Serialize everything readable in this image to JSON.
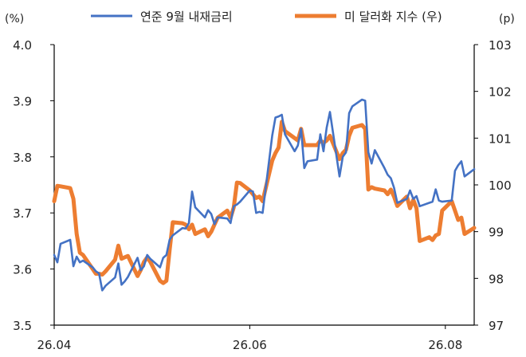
{
  "chart_data": {
    "type": "line",
    "left_axis": {
      "unit_label": "(%)",
      "ylim": [
        3.5,
        4.0
      ],
      "ticks": [
        "4.0",
        "3.9",
        "3.8",
        "3.7",
        "3.6",
        "3.5"
      ]
    },
    "right_axis": {
      "unit_label": "(p)",
      "ylim": [
        97,
        103
      ],
      "ticks": [
        "103",
        "102",
        "101",
        "100",
        "99",
        "98",
        "97"
      ]
    },
    "x_ticks": [
      "26.04",
      "26.06",
      "26.08"
    ],
    "grid": false,
    "legend_position": "top",
    "series": [
      {
        "name": "연준 9월 내재금리",
        "axis": "left",
        "color": "#4472C4",
        "points": [
          [
            "04-01",
            3.625
          ],
          [
            "04-02",
            3.612
          ],
          [
            "04-03",
            3.645
          ],
          [
            "04-06",
            3.652
          ],
          [
            "04-07",
            3.605
          ],
          [
            "04-08",
            3.622
          ],
          [
            "04-09",
            3.612
          ],
          [
            "04-10",
            3.615
          ],
          [
            "04-13",
            3.603
          ],
          [
            "04-14",
            3.596
          ],
          [
            "04-15",
            3.592
          ],
          [
            "04-16",
            3.562
          ],
          [
            "04-17",
            3.57
          ],
          [
            "04-20",
            3.585
          ],
          [
            "04-21",
            3.61
          ],
          [
            "04-22",
            3.572
          ],
          [
            "04-23",
            3.578
          ],
          [
            "04-24",
            3.586
          ],
          [
            "04-27",
            3.62
          ],
          [
            "04-28",
            3.598
          ],
          [
            "04-29",
            3.605
          ],
          [
            "04-30",
            3.625
          ],
          [
            "05-01",
            3.618
          ],
          [
            "05-04",
            3.603
          ],
          [
            "05-05",
            3.62
          ],
          [
            "05-06",
            3.625
          ],
          [
            "05-07",
            3.652
          ],
          [
            "05-08",
            3.66
          ],
          [
            "05-11",
            3.673
          ],
          [
            "05-12",
            3.672
          ],
          [
            "05-13",
            3.682
          ],
          [
            "05-14",
            3.738
          ],
          [
            "05-15",
            3.71
          ],
          [
            "05-18",
            3.692
          ],
          [
            "05-19",
            3.705
          ],
          [
            "05-20",
            3.698
          ],
          [
            "05-21",
            3.68
          ],
          [
            "05-22",
            3.692
          ],
          [
            "05-25",
            3.69
          ],
          [
            "05-26",
            3.682
          ],
          [
            "05-27",
            3.712
          ],
          [
            "05-28",
            3.715
          ],
          [
            "05-29",
            3.72
          ],
          [
            "06-01",
            3.74
          ],
          [
            "06-02",
            3.738
          ],
          [
            "06-03",
            3.7
          ],
          [
            "06-04",
            3.702
          ],
          [
            "06-05",
            3.7
          ],
          [
            "06-08",
            3.838
          ],
          [
            "06-09",
            3.87
          ],
          [
            "06-10",
            3.872
          ],
          [
            "06-11",
            3.875
          ],
          [
            "06-12",
            3.84
          ],
          [
            "06-15",
            3.81
          ],
          [
            "06-16",
            3.82
          ],
          [
            "06-17",
            3.85
          ],
          [
            "06-18",
            3.78
          ],
          [
            "06-19",
            3.792
          ],
          [
            "06-22",
            3.795
          ],
          [
            "06-23",
            3.84
          ],
          [
            "06-24",
            3.81
          ],
          [
            "06-25",
            3.852
          ],
          [
            "06-26",
            3.88
          ],
          [
            "06-29",
            3.765
          ],
          [
            "06-30",
            3.8
          ],
          [
            "07-01",
            3.808
          ],
          [
            "07-02",
            3.878
          ],
          [
            "07-03",
            3.89
          ],
          [
            "07-06",
            3.902
          ],
          [
            "07-07",
            3.9
          ],
          [
            "07-08",
            3.808
          ],
          [
            "07-09",
            3.788
          ],
          [
            "07-10",
            3.812
          ],
          [
            "07-13",
            3.78
          ],
          [
            "07-14",
            3.768
          ],
          [
            "07-15",
            3.762
          ],
          [
            "07-16",
            3.745
          ],
          [
            "07-17",
            3.718
          ],
          [
            "07-20",
            3.725
          ],
          [
            "07-21",
            3.74
          ],
          [
            "07-22",
            3.725
          ],
          [
            "07-23",
            3.73
          ],
          [
            "07-24",
            3.712
          ],
          [
            "07-27",
            3.718
          ],
          [
            "07-28",
            3.72
          ],
          [
            "07-29",
            3.742
          ],
          [
            "07-30",
            3.722
          ],
          [
            "07-31",
            3.72
          ],
          [
            "08-03",
            3.722
          ],
          [
            "08-04",
            3.775
          ],
          [
            "08-05",
            3.785
          ],
          [
            "08-06",
            3.792
          ],
          [
            "08-07",
            3.765
          ],
          [
            "08-10",
            3.778
          ]
        ]
      },
      {
        "name": "미 달러화 지수 (우)",
        "axis": "right",
        "color": "#ED7D31",
        "points": [
          [
            "04-01",
            99.65
          ],
          [
            "04-02",
            99.98
          ],
          [
            "04-03",
            99.97
          ],
          [
            "04-06",
            99.93
          ],
          [
            "04-07",
            99.7
          ],
          [
            "04-08",
            98.95
          ],
          [
            "04-09",
            98.55
          ],
          [
            "04-10",
            98.5
          ],
          [
            "04-13",
            98.2
          ],
          [
            "04-14",
            98.1
          ],
          [
            "04-15",
            98.1
          ],
          [
            "04-16",
            98.08
          ],
          [
            "04-17",
            98.15
          ],
          [
            "04-20",
            98.4
          ],
          [
            "04-21",
            98.7
          ],
          [
            "04-22",
            98.42
          ],
          [
            "04-23",
            98.45
          ],
          [
            "04-24",
            98.48
          ],
          [
            "04-27",
            98.05
          ],
          [
            "04-28",
            98.18
          ],
          [
            "04-29",
            98.35
          ],
          [
            "04-30",
            98.45
          ],
          [
            "05-01",
            98.35
          ],
          [
            "05-04",
            97.95
          ],
          [
            "05-05",
            97.9
          ],
          [
            "05-06",
            97.95
          ],
          [
            "05-07",
            98.6
          ],
          [
            "05-08",
            99.2
          ],
          [
            "05-11",
            99.18
          ],
          [
            "05-12",
            99.15
          ],
          [
            "05-13",
            99.05
          ],
          [
            "05-14",
            99.15
          ],
          [
            "05-15",
            98.95
          ],
          [
            "05-18",
            99.05
          ],
          [
            "05-19",
            98.9
          ],
          [
            "05-20",
            99.0
          ],
          [
            "05-21",
            99.15
          ],
          [
            "05-22",
            99.3
          ],
          [
            "05-25",
            99.45
          ],
          [
            "05-26",
            99.3
          ],
          [
            "05-27",
            99.52
          ],
          [
            "05-28",
            100.05
          ],
          [
            "05-29",
            100.04
          ],
          [
            "06-01",
            99.88
          ],
          [
            "06-02",
            99.8
          ],
          [
            "06-03",
            99.72
          ],
          [
            "06-04",
            99.75
          ],
          [
            "06-05",
            99.65
          ],
          [
            "06-08",
            100.52
          ],
          [
            "06-09",
            100.68
          ],
          [
            "06-10",
            100.8
          ],
          [
            "06-11",
            101.35
          ],
          [
            "06-12",
            101.15
          ],
          [
            "06-15",
            101.0
          ],
          [
            "06-16",
            100.95
          ],
          [
            "06-17",
            101.2
          ],
          [
            "06-18",
            100.85
          ],
          [
            "06-19",
            100.85
          ],
          [
            "06-22",
            100.85
          ],
          [
            "06-23",
            100.95
          ],
          [
            "06-24",
            100.9
          ],
          [
            "06-25",
            100.95
          ],
          [
            "06-26",
            101.05
          ],
          [
            "06-29",
            100.55
          ],
          [
            "06-30",
            100.68
          ],
          [
            "07-01",
            100.75
          ],
          [
            "07-02",
            101.05
          ],
          [
            "07-03",
            101.22
          ],
          [
            "07-06",
            101.28
          ],
          [
            "07-07",
            101.2
          ],
          [
            "07-08",
            99.9
          ],
          [
            "07-09",
            99.95
          ],
          [
            "07-10",
            99.92
          ],
          [
            "07-13",
            99.88
          ],
          [
            "07-14",
            99.8
          ],
          [
            "07-15",
            99.9
          ],
          [
            "07-16",
            99.75
          ],
          [
            "07-17",
            99.55
          ],
          [
            "07-20",
            99.75
          ],
          [
            "07-21",
            99.5
          ],
          [
            "07-22",
            99.68
          ],
          [
            "07-23",
            99.5
          ],
          [
            "07-24",
            98.8
          ],
          [
            "07-27",
            98.88
          ],
          [
            "07-28",
            98.82
          ],
          [
            "07-29",
            98.92
          ],
          [
            "07-30",
            98.95
          ],
          [
            "07-31",
            99.45
          ],
          [
            "08-03",
            99.65
          ],
          [
            "08-04",
            99.45
          ],
          [
            "08-05",
            99.25
          ],
          [
            "08-06",
            99.3
          ],
          [
            "08-07",
            98.95
          ],
          [
            "08-10",
            99.08
          ]
        ]
      }
    ]
  }
}
